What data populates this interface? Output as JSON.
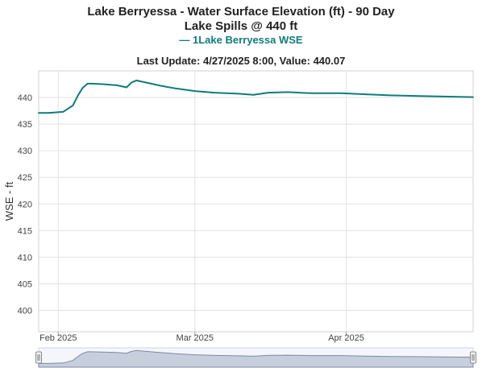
{
  "title_line1": "Lake Berryessa - Water Surface Elevation (ft) - 90 Day",
  "title_line2": "Lake Spills @ 440 ft",
  "legend_label": "— 1Lake Berryessa WSE",
  "subtitle": "Last Update: 4/27/2025 8:00, Value: 440.07",
  "colors": {
    "series": "#0e7c7b",
    "grid": "#e2e2e2",
    "navigator_fill": "#c7cfdd",
    "navigator_line": "#7a8aa8"
  },
  "chart_data": {
    "type": "line",
    "title": "Lake Berryessa - Water Surface Elevation (ft) - 90 Day",
    "subtitle": "Last Update: 4/27/2025 8:00, Value: 440.07",
    "ylabel": "WSE - ft",
    "xlabel": "",
    "ylim": [
      396,
      445
    ],
    "xlim": [
      "2025-01-28",
      "2025-04-27"
    ],
    "y_ticks": [
      "400",
      "405",
      "410",
      "415",
      "420",
      "425",
      "430",
      "435",
      "440"
    ],
    "x_ticks": [
      {
        "label": "Feb 2025",
        "date": "2025-02-01"
      },
      {
        "label": "Mar 2025",
        "date": "2025-03-01"
      },
      {
        "label": "Apr 2025",
        "date": "2025-04-01"
      }
    ],
    "grid": true,
    "legend": "top-center",
    "series": [
      {
        "name": "1Lake Berryessa WSE",
        "x": [
          "2025-01-28",
          "2025-01-30",
          "2025-02-02",
          "2025-02-04",
          "2025-02-05",
          "2025-02-06",
          "2025-02-07",
          "2025-02-08",
          "2025-02-10",
          "2025-02-13",
          "2025-02-15",
          "2025-02-16",
          "2025-02-17",
          "2025-02-19",
          "2025-02-22",
          "2025-02-25",
          "2025-03-01",
          "2025-03-05",
          "2025-03-10",
          "2025-03-13",
          "2025-03-16",
          "2025-03-20",
          "2025-03-25",
          "2025-03-31",
          "2025-04-05",
          "2025-04-10",
          "2025-04-15",
          "2025-04-20",
          "2025-04-27"
        ],
        "y": [
          437.1,
          437.1,
          437.3,
          438.5,
          440.3,
          441.8,
          442.6,
          442.6,
          442.5,
          442.3,
          441.9,
          442.8,
          443.2,
          442.8,
          442.2,
          441.7,
          441.2,
          440.9,
          440.7,
          440.5,
          440.9,
          441.0,
          440.8,
          440.8,
          440.6,
          440.4,
          440.3,
          440.2,
          440.07
        ]
      }
    ]
  },
  "navigator": {
    "handle_left_icon": "drag-handle",
    "handle_right_icon": "drag-handle"
  }
}
